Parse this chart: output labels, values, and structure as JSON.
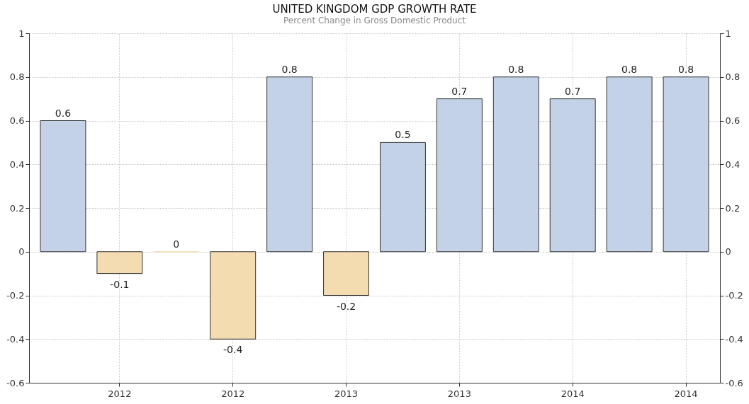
{
  "chart_data": {
    "type": "bar",
    "title": "UNITED KINGDOM GDP GROWTH RATE",
    "subtitle": "Percent Change in Gross Domestic Product",
    "categories": [
      null,
      "2012",
      null,
      "2012",
      null,
      "2013",
      null,
      "2013",
      null,
      "2014",
      null,
      "2014"
    ],
    "values": [
      0.6,
      -0.1,
      0,
      -0.4,
      0.8,
      -0.2,
      0.5,
      0.7,
      0.8,
      0.7,
      0.8,
      0.8
    ],
    "colors": [
      "#c3d2e7",
      "#f3dcb0",
      "#f3dcb0",
      "#f3dcb0",
      "#c3d2e7",
      "#f3dcb0",
      "#c3d2e7",
      "#c3d2e7",
      "#c3d2e7",
      "#c3d2e7",
      "#c3d2e7",
      "#c3d2e7"
    ],
    "ylim": [
      -0.6,
      1
    ],
    "yticks": [
      -0.6,
      -0.4,
      -0.2,
      0,
      0.2,
      0.4,
      0.6,
      0.8,
      1
    ],
    "y2lim": [
      -0.6,
      1
    ],
    "y2ticks": [
      -0.6,
      -0.4,
      -0.2,
      0,
      0.2,
      0.4,
      0.6,
      0.8,
      1
    ],
    "data_labels": true,
    "grid": true
  }
}
